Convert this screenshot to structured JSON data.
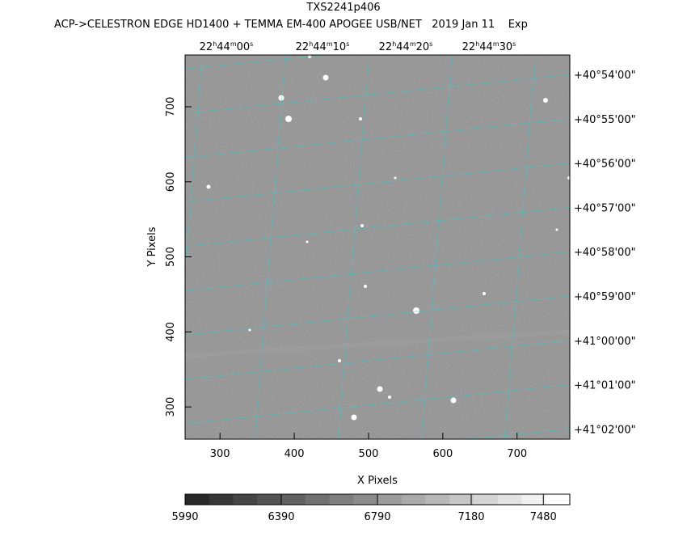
{
  "chart_data": {
    "type": "image",
    "title": "TXS2241p406",
    "subtitle": "ACP->CELESTRON EDGE HD1400 + TEMMA EM-400 APOGEE USB/NET   2019 Jan 11    Exp",
    "xlabel": "X Pixels",
    "ylabel": "Y Pixels",
    "xlim": [
      253,
      771
    ],
    "ylim": [
      257,
      769
    ],
    "xticks": [
      300,
      400,
      500,
      600,
      700
    ],
    "yticks": [
      300,
      400,
      500,
      600,
      700
    ],
    "ra_ticks": [
      [
        "22",
        "h",
        "44",
        "m",
        "00",
        "s"
      ],
      [
        "22",
        "h",
        "44",
        "m",
        "10",
        "s"
      ],
      [
        "22",
        "h",
        "44",
        "m",
        "20",
        "s"
      ],
      [
        "22",
        "h",
        "44",
        "m",
        "30",
        "s"
      ]
    ],
    "dec_ticks": [
      "+40°54'00\"",
      "+40°55'00\"",
      "+40°56'00\"",
      "+40°57'00\"",
      "+40°58'00\"",
      "+40°59'00\"",
      "+41°00'00\"",
      "+41°01'00\"",
      "+41°02'00\""
    ],
    "grid_color": "#40c8c8",
    "colorbar_lim": [
      5990,
      7590
    ],
    "colorbar_ticks": [
      5990,
      6390,
      6790,
      7180,
      7480
    ]
  }
}
